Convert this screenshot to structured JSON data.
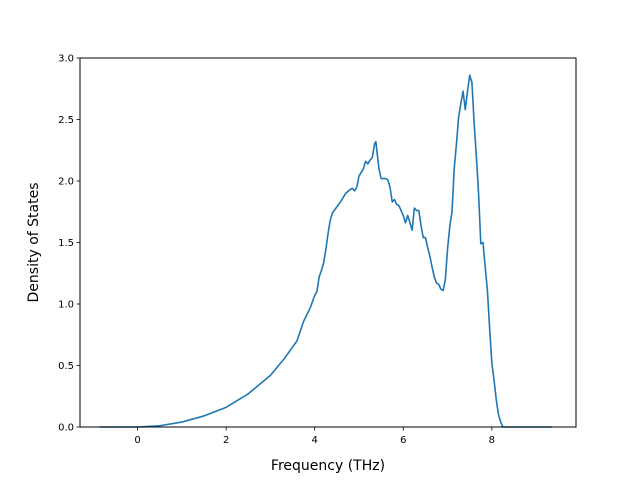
{
  "chart_data": {
    "type": "line",
    "title": "",
    "xlabel": "Frequency (THz)",
    "ylabel": "Density of States",
    "xlim": [
      -1.3,
      9.9
    ],
    "ylim": [
      0.0,
      3.0
    ],
    "xticks": [
      0,
      2,
      4,
      6,
      8
    ],
    "xtick_labels": [
      "0",
      "2",
      "4",
      "6",
      "8"
    ],
    "yticks": [
      0.0,
      0.5,
      1.0,
      1.5,
      2.0,
      2.5,
      3.0
    ],
    "ytick_labels": [
      "0.0",
      "0.5",
      "1.0",
      "1.5",
      "2.0",
      "2.5",
      "3.0"
    ],
    "grid": false,
    "line_color": "#1f77b4",
    "series": [
      {
        "x": [
          -0.85,
          0.0,
          0.5,
          1.0,
          1.5,
          2.0,
          2.5,
          3.0,
          3.3,
          3.5,
          3.6,
          3.75,
          3.9,
          4.0,
          4.05,
          4.1,
          4.15,
          4.2,
          4.25,
          4.3,
          4.35,
          4.4,
          4.5,
          4.6,
          4.7,
          4.8,
          4.85,
          4.9,
          4.95,
          5.0,
          5.1,
          5.15,
          5.2,
          5.25,
          5.3,
          5.35,
          5.38,
          5.45,
          5.5,
          5.55,
          5.6,
          5.65,
          5.7,
          5.75,
          5.8,
          5.85,
          5.9,
          5.95,
          6.0,
          6.05,
          6.1,
          6.15,
          6.2,
          6.25,
          6.3,
          6.35,
          6.4,
          6.45,
          6.5,
          6.55,
          6.6,
          6.65,
          6.7,
          6.75,
          6.8,
          6.85,
          6.9,
          6.95,
          7.0,
          7.05,
          7.1,
          7.15,
          7.2,
          7.25,
          7.3,
          7.35,
          7.4,
          7.45,
          7.5,
          7.55,
          7.6,
          7.65,
          7.7,
          7.75,
          7.8,
          7.85,
          7.9,
          7.95,
          8.0,
          8.05,
          8.1,
          8.15,
          8.2,
          8.25,
          8.3,
          8.35,
          8.4,
          8.45,
          8.5,
          8.55,
          8.6,
          8.7,
          9.0,
          9.35
        ],
        "y": [
          0.0,
          0.0,
          0.01,
          0.04,
          0.09,
          0.16,
          0.27,
          0.42,
          0.55,
          0.65,
          0.7,
          0.86,
          0.97,
          1.07,
          1.1,
          1.22,
          1.27,
          1.33,
          1.44,
          1.57,
          1.68,
          1.74,
          1.79,
          1.84,
          1.9,
          1.93,
          1.94,
          1.92,
          1.95,
          2.04,
          2.1,
          2.16,
          2.14,
          2.17,
          2.19,
          2.3,
          2.32,
          2.1,
          2.02,
          2.02,
          2.02,
          2.01,
          1.95,
          1.83,
          1.85,
          1.81,
          1.8,
          1.76,
          1.72,
          1.66,
          1.72,
          1.66,
          1.6,
          1.78,
          1.76,
          1.76,
          1.64,
          1.54,
          1.54,
          1.46,
          1.39,
          1.3,
          1.22,
          1.17,
          1.16,
          1.12,
          1.11,
          1.2,
          1.45,
          1.63,
          1.75,
          2.1,
          2.3,
          2.52,
          2.63,
          2.73,
          2.58,
          2.73,
          2.86,
          2.8,
          2.47,
          2.2,
          1.9,
          1.49,
          1.5,
          1.3,
          1.11,
          0.8,
          0.52,
          0.38,
          0.22,
          0.1,
          0.04,
          0.0,
          0.0,
          0.0,
          0.0,
          0.0,
          0.0,
          0.0,
          0.0,
          0.0,
          0.0,
          0.0
        ]
      }
    ]
  }
}
